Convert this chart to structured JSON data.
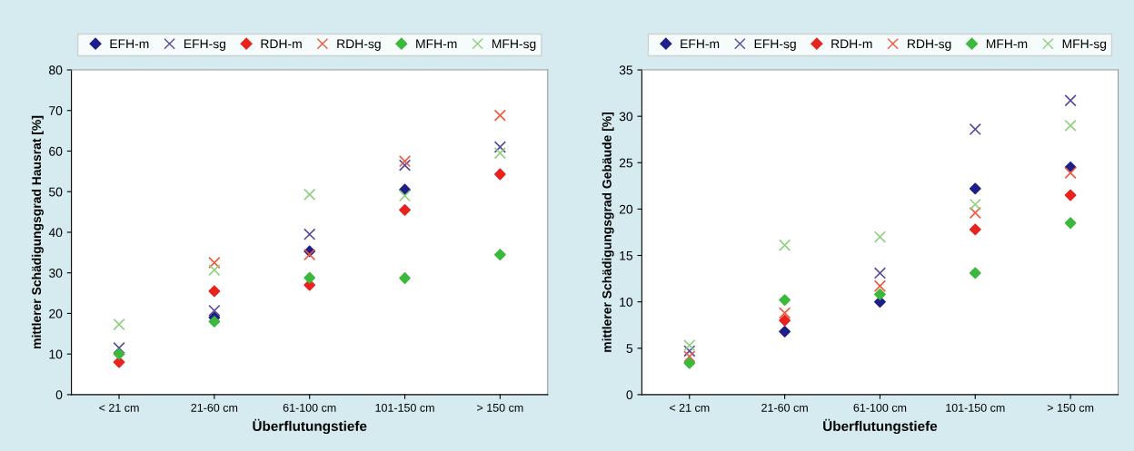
{
  "chart_data": [
    {
      "type": "scatter",
      "categories": [
        "< 21 cm",
        "21-60 cm",
        "61-100 cm",
        "101-150 cm",
        "> 150 cm"
      ],
      "xlabel": "Überflutungstiefe",
      "ylabel": "mittlerer Schädigungsgrad Hausrat [%]",
      "ylim": [
        0,
        80
      ],
      "yticks": [
        0,
        10,
        20,
        30,
        40,
        50,
        60,
        70,
        80
      ],
      "legend": "top",
      "grid": false,
      "series": [
        {
          "name": "EFH-m",
          "color": "#1f1f8a",
          "marker": "diamond",
          "values": [
            null,
            19,
            35.3,
            50.5,
            null
          ]
        },
        {
          "name": "EFH-sg",
          "color": "#5a4a9a",
          "marker": "cross",
          "values": [
            11.5,
            20.7,
            39.5,
            56.5,
            61
          ]
        },
        {
          "name": "RDH-m",
          "color": "#e8231e",
          "marker": "diamond",
          "values": [
            8,
            25.5,
            27,
            45.5,
            54.3
          ]
        },
        {
          "name": "RDH-sg",
          "color": "#f05a40",
          "marker": "cross",
          "values": [
            null,
            32.5,
            34.5,
            57.5,
            68.8
          ]
        },
        {
          "name": "MFH-m",
          "color": "#3cb83c",
          "marker": "diamond",
          "values": [
            10,
            18,
            28.8,
            28.7,
            34.5
          ]
        },
        {
          "name": "MFH-sg",
          "color": "#90d080",
          "marker": "cross",
          "values": [
            17.3,
            30.7,
            49.3,
            49,
            59.5
          ]
        }
      ]
    },
    {
      "type": "scatter",
      "categories": [
        "< 21 cm",
        "21-60 cm",
        "61-100 cm",
        "101-150 cm",
        "> 150 cm"
      ],
      "xlabel": "Überflutungstiefe",
      "ylabel": "mittlerer Schädigungsgrad Gebäude [%]",
      "ylim": [
        0,
        35
      ],
      "yticks": [
        0,
        5,
        10,
        15,
        20,
        25,
        30,
        35
      ],
      "legend": "top",
      "grid": false,
      "series": [
        {
          "name": "EFH-m",
          "color": "#1f1f8a",
          "marker": "diamond",
          "values": [
            null,
            6.8,
            10,
            22.2,
            24.5
          ]
        },
        {
          "name": "EFH-sg",
          "color": "#5a4a9a",
          "marker": "cross",
          "values": [
            4.7,
            null,
            13.1,
            28.6,
            31.7
          ]
        },
        {
          "name": "RDH-m",
          "color": "#e8231e",
          "marker": "diamond",
          "values": [
            null,
            8,
            null,
            17.8,
            21.5
          ]
        },
        {
          "name": "RDH-sg",
          "color": "#f05a40",
          "marker": "cross",
          "values": [
            4.1,
            8.8,
            11.7,
            19.6,
            23.9
          ]
        },
        {
          "name": "MFH-m",
          "color": "#3cb83c",
          "marker": "diamond",
          "values": [
            3.4,
            10.2,
            10.8,
            13.1,
            18.5
          ]
        },
        {
          "name": "MFH-sg",
          "color": "#90d080",
          "marker": "cross",
          "values": [
            5.3,
            16.1,
            17,
            20.5,
            29
          ]
        }
      ]
    }
  ]
}
